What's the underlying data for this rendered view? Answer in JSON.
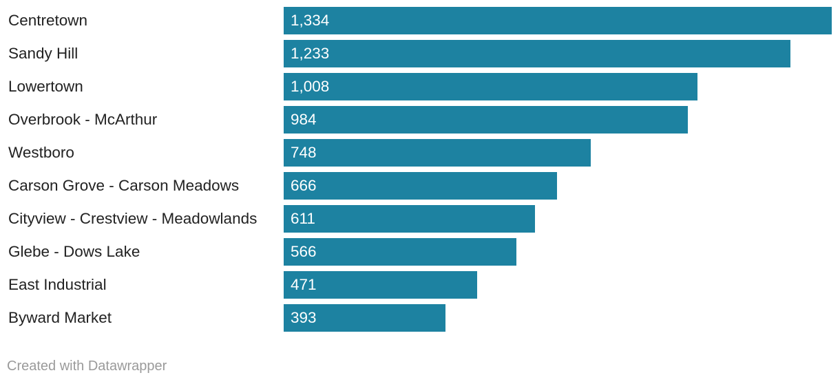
{
  "chart_data": {
    "type": "bar",
    "orientation": "horizontal",
    "categories": [
      "Centretown",
      "Sandy Hill",
      "Lowertown",
      "Overbrook - McArthur",
      "Westboro",
      "Carson Grove - Carson Meadows",
      "Cityview - Crestview - Meadowlands",
      "Glebe - Dows Lake",
      "East Industrial",
      "Byward Market"
    ],
    "values": [
      1334,
      1233,
      1008,
      984,
      748,
      666,
      611,
      566,
      471,
      393
    ],
    "value_labels": [
      "1,334",
      "1,233",
      "1,008",
      "984",
      "748",
      "666",
      "611",
      "566",
      "471",
      "393"
    ],
    "bar_color": "#1d82a1",
    "xlim": [
      0,
      1334
    ],
    "grid": false,
    "legend": "none"
  },
  "footer": {
    "credit": "Created with Datawrapper"
  }
}
